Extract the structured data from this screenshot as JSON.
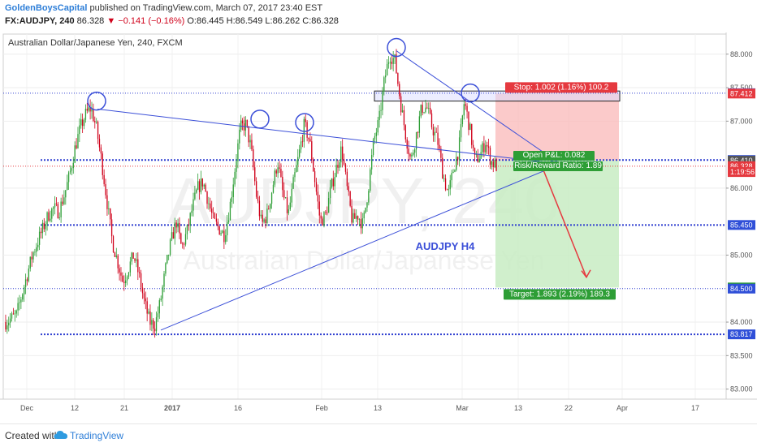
{
  "header": {
    "publisher": "GoldenBoysCapital",
    "published_text": "published on TradingView.com, March 07, 2017 23:40 EST",
    "symbol_line": {
      "symbol": "FX:AUDJPY, 240",
      "last": "86.328",
      "change_arrow": "▼",
      "change": "−0.141 (−0.16%)",
      "open": "O:86.445",
      "high": "H:86.549",
      "low": "L:86.262",
      "close": "C:86.328"
    }
  },
  "footer": {
    "created_with": "Created with",
    "brand": "TradingView",
    "logo_icon": "tradingview-cloud-icon"
  },
  "chart_data": {
    "type": "candlestick",
    "title": "Australian Dollar/Japanese Yen, 240, FXCM",
    "watermark_symbol": "AUDJPY, 240",
    "watermark_name": "Australian Dollar/Japanese Yen",
    "annotation": "AUDJPY H4",
    "x_ticks": [
      "Dec",
      "12",
      "21",
      "2017",
      "16",
      "Feb",
      "13",
      "Mar",
      "13",
      "22",
      "Apr",
      "17"
    ],
    "y_ticks": [
      "88.000",
      "87.500",
      "87.000",
      "86.000",
      "85.000",
      "84.000",
      "83.500",
      "83.000"
    ],
    "ylim": [
      82.85,
      88.3
    ],
    "price_tags": [
      {
        "value": 87.417,
        "label": "87.417",
        "color": "#2f4fd8"
      },
      {
        "value": 87.412,
        "label": "87.412",
        "color": "#e5393f"
      },
      {
        "value": 86.42,
        "label": "86.420",
        "color": "#2f4fd8"
      },
      {
        "value": 86.41,
        "label": "86.410",
        "color": "#555555"
      },
      {
        "value": 86.328,
        "label": "86.328",
        "color": "#e5393f"
      },
      {
        "value": 86.24,
        "label": "1:19:56",
        "color": "#e5393f"
      },
      {
        "value": 85.45,
        "label": "85.450",
        "color": "#2f4fd8"
      },
      {
        "value": 84.517,
        "label": "84.517",
        "color": "#2e9e36"
      },
      {
        "value": 84.5,
        "label": "84.500",
        "color": "#2f4fd8"
      },
      {
        "value": 83.817,
        "label": "83.817",
        "color": "#2f4fd8"
      }
    ],
    "horizontal_levels": [
      {
        "value": 87.417,
        "style": "dotted-thin"
      },
      {
        "value": 86.42,
        "style": "dotted-thick"
      },
      {
        "value": 85.45,
        "style": "dotted-thick"
      },
      {
        "value": 84.5,
        "style": "dotted-thin"
      },
      {
        "value": 83.817,
        "style": "dotted-thick"
      }
    ],
    "position": {
      "entry": 86.41,
      "stop": 87.412,
      "target": 84.517,
      "stop_label": "Stop: 1.002 (1.16%) 100.2",
      "target_label": "Target: 1.893 (2.19%) 189.3",
      "pnl_label": "Open P&L: 0.082",
      "rr_label": "Risk/Reward Ratio: 1.89"
    },
    "colors": {
      "up": "#2e9e36",
      "down": "#d0021b",
      "trendline": "#3b4fd8",
      "stop_zone": "#f9b8b8",
      "target_zone": "#c8ecc3"
    },
    "candle_path": [
      84.0,
      84.05,
      84.1,
      84.4,
      84.7,
      85.0,
      85.2,
      85.4,
      85.6,
      85.7,
      85.65,
      85.9,
      86.2,
      86.6,
      86.9,
      87.1,
      87.2,
      86.9,
      86.4,
      85.8,
      85.2,
      84.9,
      84.6,
      84.8,
      85.0,
      84.7,
      84.3,
      84.0,
      83.95,
      84.3,
      84.8,
      85.2,
      85.5,
      85.1,
      85.35,
      85.7,
      86.0,
      86.1,
      85.8,
      85.5,
      85.4,
      85.3,
      85.7,
      86.3,
      86.9,
      86.95,
      86.6,
      85.9,
      85.45,
      85.6,
      86.0,
      86.4,
      85.9,
      85.6,
      86.1,
      86.5,
      86.95,
      86.7,
      86.1,
      85.5,
      85.6,
      86.0,
      86.3,
      86.6,
      86.0,
      85.5,
      85.6,
      85.45,
      86.0,
      86.7,
      87.0,
      87.6,
      88.0,
      87.9,
      87.3,
      86.8,
      86.4,
      86.8,
      87.2,
      87.2,
      86.9,
      86.7,
      86.2,
      85.9,
      86.3,
      86.6,
      87.3,
      86.9,
      86.4,
      86.5,
      86.7,
      86.4,
      86.33
    ]
  }
}
